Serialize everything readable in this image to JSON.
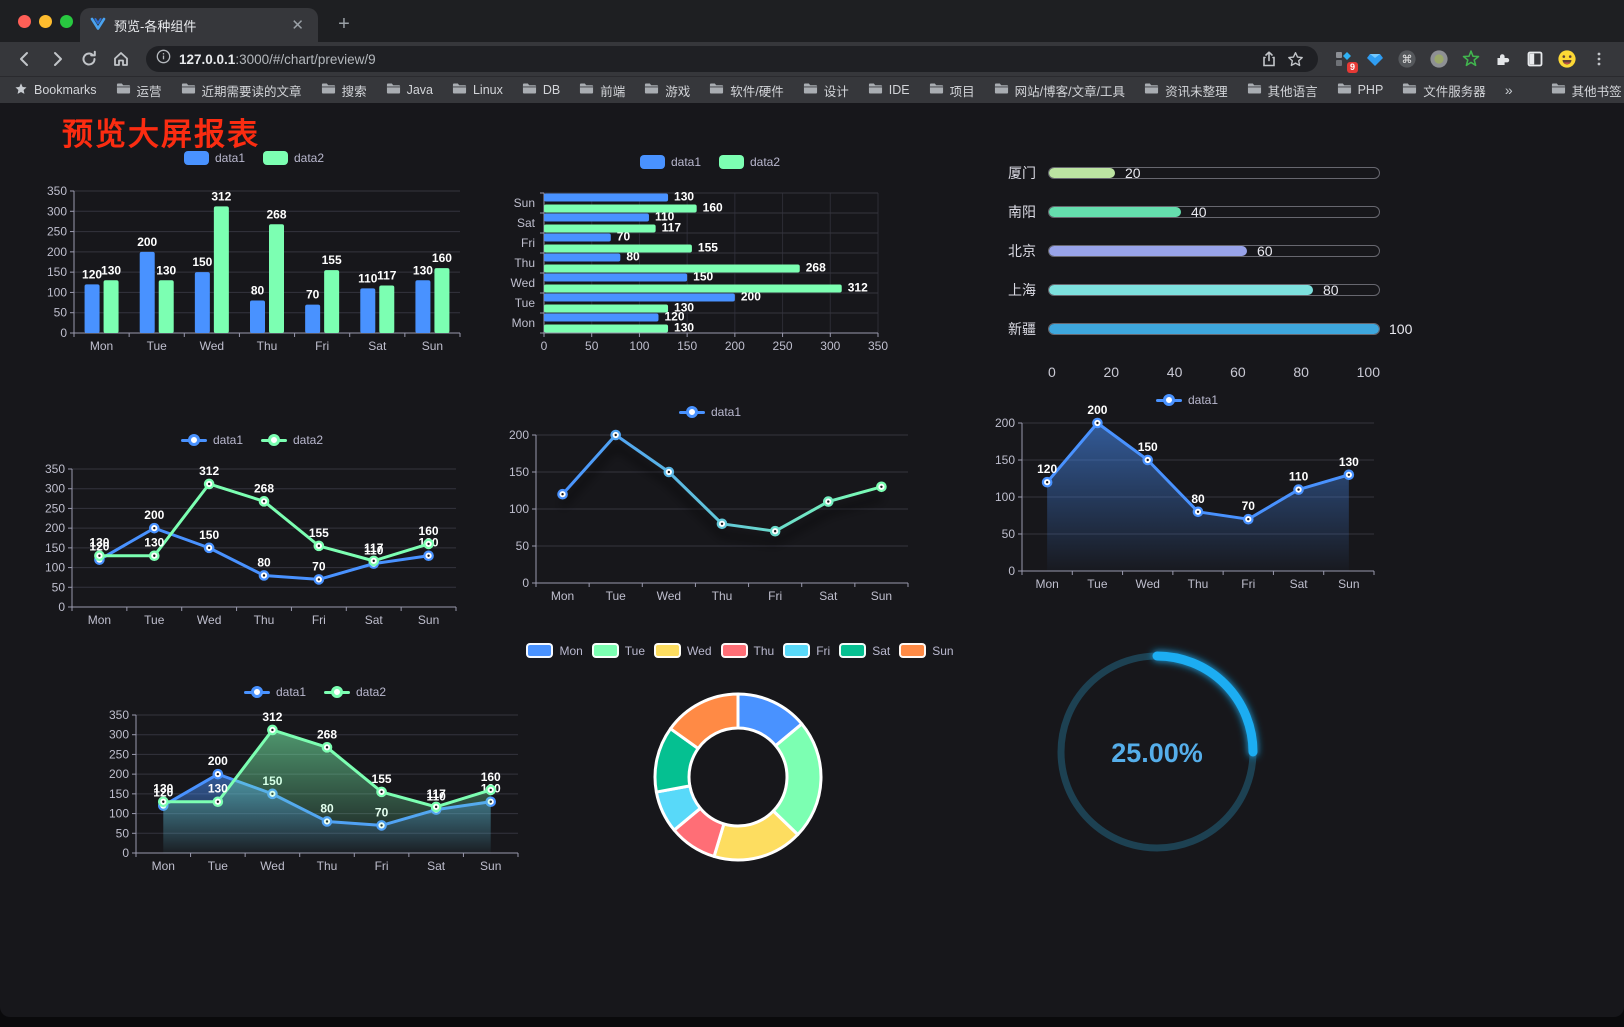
{
  "browser": {
    "tab_title": "预览-各种组件",
    "new_tab_label": "+",
    "url_host": "127.0.0.1",
    "url_rest": ":3000/#/chart/preview/9",
    "extensions_badge": "9",
    "bookmarks": [
      {
        "icon": "star",
        "label": "Bookmarks"
      },
      {
        "icon": "folder",
        "label": "运营"
      },
      {
        "icon": "folder",
        "label": "近期需要读的文章"
      },
      {
        "icon": "folder",
        "label": "搜索"
      },
      {
        "icon": "folder",
        "label": "Java"
      },
      {
        "icon": "folder",
        "label": "Linux"
      },
      {
        "icon": "folder",
        "label": "DB"
      },
      {
        "icon": "folder",
        "label": "前端"
      },
      {
        "icon": "folder",
        "label": "游戏"
      },
      {
        "icon": "folder",
        "label": "软件/硬件"
      },
      {
        "icon": "folder",
        "label": "设计"
      },
      {
        "icon": "folder",
        "label": "IDE"
      },
      {
        "icon": "folder",
        "label": "项目"
      },
      {
        "icon": "folder",
        "label": "网站/博客/文章/工具"
      },
      {
        "icon": "folder",
        "label": "资讯未整理"
      },
      {
        "icon": "folder",
        "label": "其他语言"
      },
      {
        "icon": "folder",
        "label": "PHP"
      },
      {
        "icon": "folder",
        "label": "文件服务器"
      },
      {
        "icon": "chevron",
        "label": "»"
      },
      {
        "icon": "divider",
        "label": ""
      },
      {
        "icon": "folder",
        "label": "其他书签"
      }
    ]
  },
  "page": {
    "title": "预览大屏报表",
    "title_color": "#fb2c11",
    "background": "#17171b"
  },
  "chart_data": [
    {
      "type": "bar",
      "title": "",
      "legend": true,
      "categories": [
        "Mon",
        "Tue",
        "Wed",
        "Thu",
        "Fri",
        "Sat",
        "Sun"
      ],
      "series": [
        {
          "name": "data1",
          "color": "#4992ff",
          "values": [
            120,
            200,
            150,
            80,
            70,
            110,
            130
          ],
          "value_labels": true
        },
        {
          "name": "data2",
          "color": "#7cffb2",
          "values": [
            130,
            130,
            312,
            268,
            155,
            117,
            160
          ],
          "value_labels": true
        }
      ],
      "ylim": [
        0,
        350
      ],
      "ystep": 50,
      "grid": true
    },
    {
      "type": "bar-horizontal",
      "title": "",
      "legend": true,
      "categories": [
        "Mon",
        "Tue",
        "Wed",
        "Thu",
        "Fri",
        "Sat",
        "Sun"
      ],
      "series": [
        {
          "name": "data1",
          "color": "#4992ff",
          "values": [
            120,
            200,
            150,
            80,
            70,
            110,
            130
          ],
          "value_labels": true
        },
        {
          "name": "data2",
          "color": "#7cffb2",
          "values": [
            130,
            130,
            312,
            268,
            155,
            117,
            160
          ],
          "value_labels": true
        }
      ],
      "xlim": [
        0,
        350
      ],
      "xstep": 50,
      "grid": true
    },
    {
      "type": "bar-progress",
      "title": "",
      "categories": [
        "厦门",
        "南阳",
        "北京",
        "上海",
        "新疆"
      ],
      "values": [
        20,
        40,
        60,
        80,
        100
      ],
      "colors": [
        "#bce4a2",
        "#65deae",
        "#98a3e9",
        "#7de1de",
        "#3ea7dd"
      ],
      "xlim": [
        0,
        100
      ],
      "xticks": [
        0,
        20,
        40,
        60,
        80,
        100
      ],
      "value_labels": true
    },
    {
      "type": "line",
      "title": "",
      "legend": true,
      "categories": [
        "Mon",
        "Tue",
        "Wed",
        "Thu",
        "Fri",
        "Sat",
        "Sun"
      ],
      "series": [
        {
          "name": "data1",
          "color": "#4992ff",
          "values": [
            120,
            200,
            150,
            80,
            70,
            110,
            130
          ],
          "value_labels": true
        },
        {
          "name": "data2",
          "color": "#7cffb2",
          "values": [
            130,
            130,
            312,
            268,
            155,
            117,
            160
          ],
          "value_labels": true
        }
      ],
      "ylim": [
        0,
        350
      ],
      "ystep": 50,
      "grid": true
    },
    {
      "type": "line",
      "title": "",
      "legend": true,
      "categories": [
        "Mon",
        "Tue",
        "Wed",
        "Thu",
        "Fri",
        "Sat",
        "Sun"
      ],
      "series": [
        {
          "name": "data1",
          "color": "#4992ff",
          "gradient": [
            "#4992ff",
            "#7cffb2"
          ],
          "shadow": true,
          "values": [
            120,
            200,
            150,
            80,
            70,
            110,
            130
          ],
          "value_labels": false
        }
      ],
      "ylim": [
        0,
        200
      ],
      "ystep": 50,
      "grid": true
    },
    {
      "type": "line",
      "title": "",
      "legend": true,
      "categories": [
        "Mon",
        "Tue",
        "Wed",
        "Thu",
        "Fri",
        "Sat",
        "Sun"
      ],
      "series": [
        {
          "name": "data1",
          "color": "#4992ff",
          "area": true,
          "values": [
            120,
            200,
            150,
            80,
            70,
            110,
            130
          ],
          "value_labels": true
        }
      ],
      "ylim": [
        0,
        200
      ],
      "ystep": 50,
      "grid": true
    },
    {
      "type": "line",
      "title": "",
      "legend": true,
      "categories": [
        "Mon",
        "Tue",
        "Wed",
        "Thu",
        "Fri",
        "Sat",
        "Sun"
      ],
      "series": [
        {
          "name": "data1",
          "color": "#4992ff",
          "area": true,
          "values": [
            120,
            200,
            150,
            80,
            70,
            110,
            130
          ],
          "value_labels": true
        },
        {
          "name": "data2",
          "color": "#7cffb2",
          "area": true,
          "values": [
            130,
            130,
            312,
            268,
            155,
            117,
            160
          ],
          "value_labels": true
        }
      ],
      "ylim": [
        0,
        350
      ],
      "ystep": 50,
      "grid": true
    },
    {
      "type": "pie",
      "title": "",
      "legend": true,
      "donut": true,
      "border_color": "#ffffff",
      "items": [
        {
          "name": "Mon",
          "value": 120,
          "color": "#4992ff"
        },
        {
          "name": "Tue",
          "value": 200,
          "color": "#7cffb2"
        },
        {
          "name": "Wed",
          "value": 150,
          "color": "#fddd60"
        },
        {
          "name": "Thu",
          "value": 80,
          "color": "#ff6e76"
        },
        {
          "name": "Fri",
          "value": 70,
          "color": "#58d9f9"
        },
        {
          "name": "Sat",
          "value": 110,
          "color": "#05c091"
        },
        {
          "name": "Sun",
          "value": 130,
          "color": "#ff8a45"
        }
      ]
    },
    {
      "type": "gauge",
      "value": 25,
      "max": 100,
      "label": "25.00%",
      "progress_color": "#1cadf2",
      "track_color": "#1d4152",
      "text_color": "#55aeea"
    }
  ]
}
